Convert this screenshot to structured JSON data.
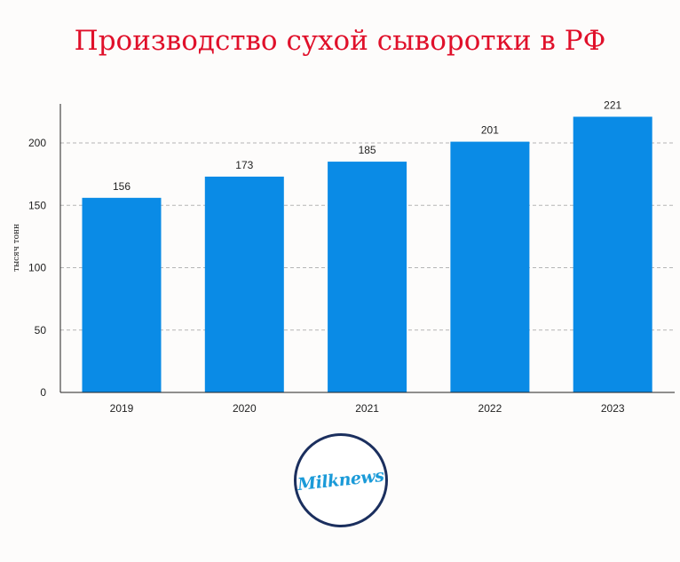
{
  "chart_data": {
    "type": "bar",
    "title": "Производство сухой сыворотки в РФ",
    "ylabel": "тысяч тонн",
    "xlabel": "",
    "categories": [
      "2019",
      "2020",
      "2021",
      "2022",
      "2023"
    ],
    "values": [
      156,
      173,
      185,
      201,
      221
    ],
    "value_labels": [
      "156",
      "173",
      "185",
      "201",
      "221"
    ],
    "yticks": [
      "0",
      "50",
      "100",
      "150",
      "200"
    ],
    "ylim": [
      0,
      232
    ],
    "grid": "horizontal-dashed",
    "bar_color": "#0a8be6"
  },
  "logo": {
    "text": "Milknews"
  }
}
